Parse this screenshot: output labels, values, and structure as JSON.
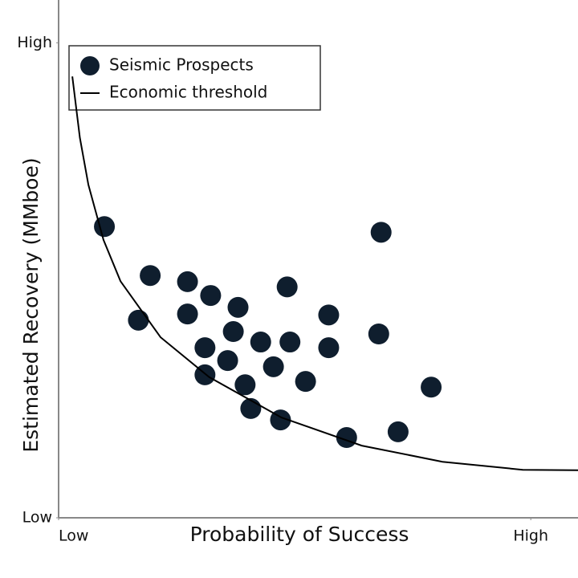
{
  "chart_data": {
    "type": "scatter",
    "xlabel": "Probability of Success",
    "ylabel": "Estimated Recovery (MMboe)",
    "xlim": [
      0,
      1.1
    ],
    "ylim": [
      0,
      1.09
    ],
    "xticks": [
      {
        "value": 0,
        "label": "Low"
      },
      {
        "value": 1,
        "label": "High"
      }
    ],
    "yticks": [
      {
        "value": 0,
        "label": "Low"
      },
      {
        "value": 1,
        "label": "High"
      }
    ],
    "legend": "upper left",
    "series": [
      {
        "name": "Seismic Prospects",
        "type": "scatter",
        "color": "#0f1e2e",
        "x": [
          0.097,
          0.194,
          0.169,
          0.273,
          0.322,
          0.273,
          0.38,
          0.484,
          0.683,
          0.572,
          0.37,
          0.428,
          0.49,
          0.31,
          0.358,
          0.455,
          0.572,
          0.678,
          0.31,
          0.395,
          0.523,
          0.789,
          0.407,
          0.47,
          0.61,
          0.719
        ],
        "values": [
          0.613,
          0.51,
          0.416,
          0.497,
          0.468,
          0.429,
          0.443,
          0.486,
          0.601,
          0.427,
          0.392,
          0.37,
          0.37,
          0.358,
          0.331,
          0.318,
          0.358,
          0.387,
          0.301,
          0.28,
          0.287,
          0.275,
          0.23,
          0.206,
          0.169,
          0.181
        ]
      },
      {
        "name": "Economic threshold",
        "type": "line",
        "color": "#000000",
        "x": [
          0.029,
          0.045,
          0.063,
          0.095,
          0.131,
          0.216,
          0.319,
          0.472,
          0.642,
          0.813,
          0.983,
          1.1
        ],
        "values": [
          0.929,
          0.8,
          0.701,
          0.585,
          0.498,
          0.38,
          0.296,
          0.211,
          0.152,
          0.118,
          0.101,
          0.1
        ]
      }
    ]
  }
}
